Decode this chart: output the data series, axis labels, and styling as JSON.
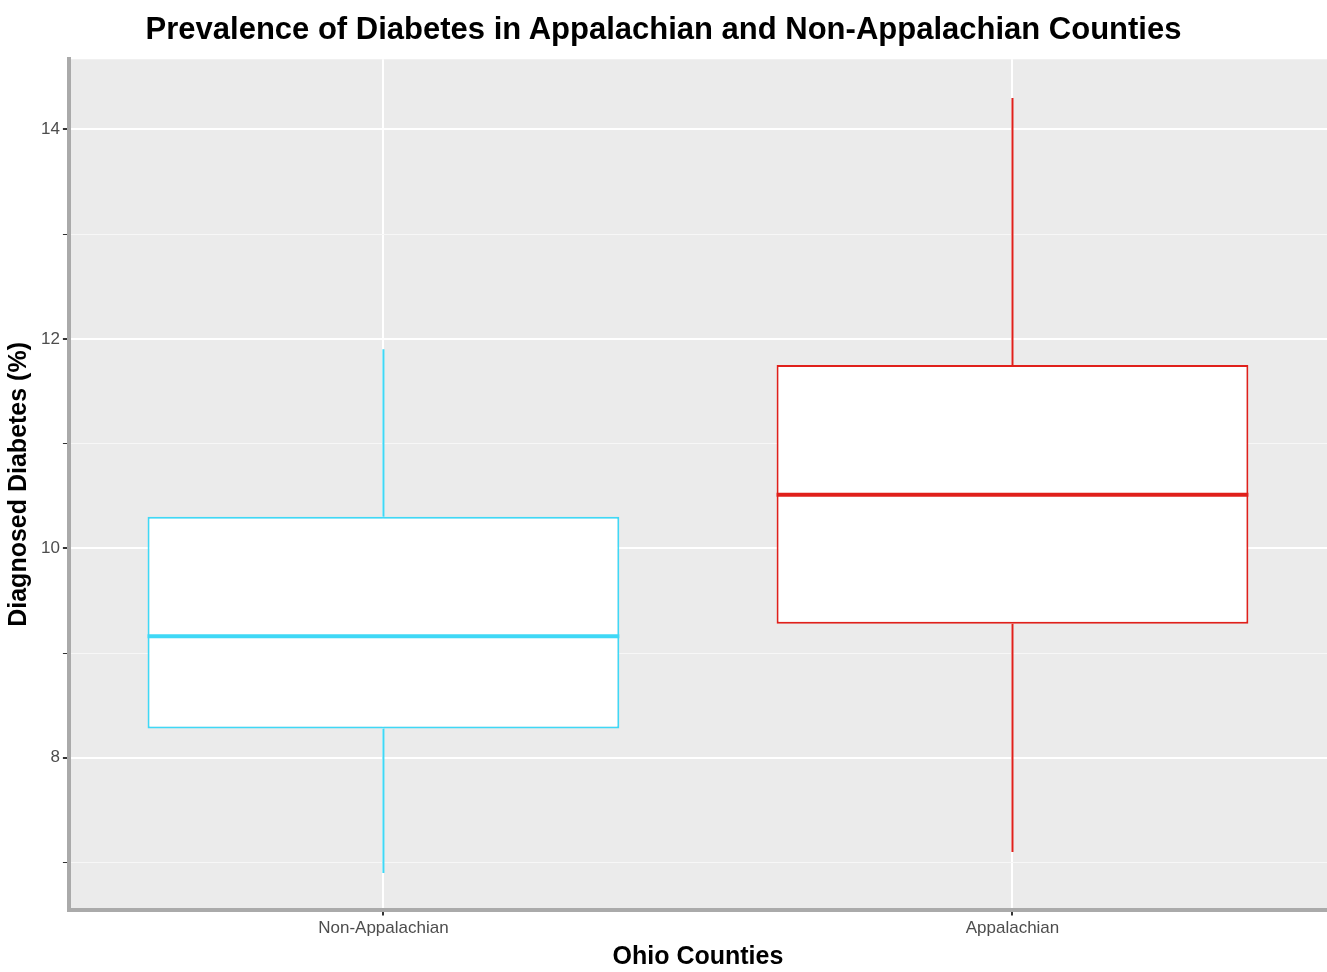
{
  "chart_data": {
    "type": "box",
    "title": "Prevalence of Diabetes in Appalachian and Non-Appalachian Counties",
    "xlabel": "Ohio Counties",
    "ylabel": "Diagnosed Diabetes (%)",
    "categories": [
      "Non-Appalachian",
      "Appalachian"
    ],
    "colors": [
      "#3fd8f6",
      "#e0201b"
    ],
    "boxes": [
      {
        "low": 6.9,
        "q1": 8.28,
        "median": 9.16,
        "q3": 10.3,
        "high": 11.9
      },
      {
        "low": 7.1,
        "q1": 9.28,
        "median": 10.51,
        "q3": 11.75,
        "high": 14.3
      }
    ],
    "ylim": [
      6.55,
      14.67
    ],
    "yticks": [
      {
        "value": 7,
        "label": null
      },
      8,
      {
        "value": 9,
        "label": null
      },
      10,
      {
        "value": 11,
        "label": null
      },
      12,
      {
        "value": 13,
        "label": null
      },
      14
    ],
    "grid": true,
    "legend": false
  }
}
